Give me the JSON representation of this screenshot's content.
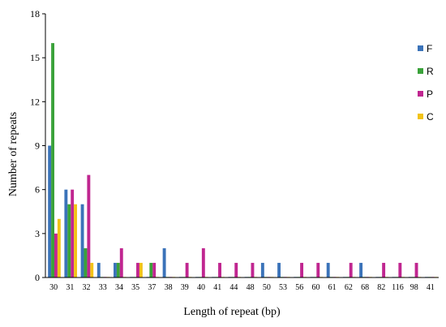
{
  "chart_data": {
    "type": "bar",
    "xlabel": "Length of repeat (bp)",
    "ylabel": "Number of repeats",
    "ylim": [
      0,
      18
    ],
    "yticks": [
      0,
      3,
      6,
      9,
      12,
      15,
      18
    ],
    "categories": [
      "30",
      "31",
      "32",
      "33",
      "34",
      "35",
      "37",
      "38",
      "39",
      "40",
      "41",
      "44",
      "48",
      "50",
      "53",
      "56",
      "60",
      "61",
      "62",
      "68",
      "82",
      "116",
      "98",
      "41"
    ],
    "legend_position": "right",
    "grid": false,
    "series": [
      {
        "name": "F",
        "color": "#3b73b9",
        "values": [
          9,
          6,
          5,
          1,
          1,
          0,
          0,
          2,
          0,
          0,
          0,
          0,
          0,
          1,
          1,
          0,
          0,
          1,
          0,
          1,
          0,
          0,
          0,
          0
        ]
      },
      {
        "name": "R",
        "color": "#3aa23a",
        "values": [
          16,
          5,
          2,
          0,
          1,
          0,
          1,
          0,
          0,
          0,
          0,
          0,
          0,
          0,
          0,
          0,
          0,
          0,
          0,
          0,
          0,
          0,
          0,
          0
        ]
      },
      {
        "name": "P",
        "color": "#c02690",
        "values": [
          3,
          6,
          7,
          0,
          2,
          1,
          1,
          0,
          1,
          2,
          1,
          1,
          1,
          0,
          0,
          1,
          1,
          0,
          1,
          0,
          1,
          1,
          1,
          0
        ]
      },
      {
        "name": "C",
        "color": "#f2c318",
        "values": [
          4,
          5,
          1,
          0,
          0,
          1,
          0,
          0,
          0,
          0,
          0,
          0,
          0,
          0,
          0,
          0,
          0,
          0,
          0,
          0,
          0,
          0,
          0,
          0
        ]
      }
    ]
  }
}
